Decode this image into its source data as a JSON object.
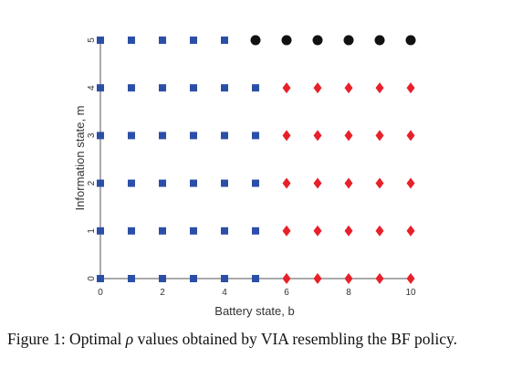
{
  "chart_data": {
    "type": "scatter",
    "xlabel": "Battery state, b",
    "ylabel": "Information state, m",
    "xlim": [
      0,
      10
    ],
    "ylim": [
      0,
      5
    ],
    "x_ticks": [
      0,
      2,
      4,
      6,
      8,
      10
    ],
    "y_ticks": [
      0,
      1,
      2,
      3,
      4,
      5
    ],
    "grid": false,
    "series": [
      {
        "marker": "square",
        "color": "#2b4fa8",
        "points": [
          [
            0,
            0
          ],
          [
            1,
            0
          ],
          [
            2,
            0
          ],
          [
            3,
            0
          ],
          [
            4,
            0
          ],
          [
            5,
            0
          ],
          [
            0,
            1
          ],
          [
            1,
            1
          ],
          [
            2,
            1
          ],
          [
            3,
            1
          ],
          [
            4,
            1
          ],
          [
            5,
            1
          ],
          [
            0,
            2
          ],
          [
            1,
            2
          ],
          [
            2,
            2
          ],
          [
            3,
            2
          ],
          [
            4,
            2
          ],
          [
            5,
            2
          ],
          [
            0,
            3
          ],
          [
            1,
            3
          ],
          [
            2,
            3
          ],
          [
            3,
            3
          ],
          [
            4,
            3
          ],
          [
            5,
            3
          ],
          [
            0,
            4
          ],
          [
            1,
            4
          ],
          [
            2,
            4
          ],
          [
            3,
            4
          ],
          [
            4,
            4
          ],
          [
            5,
            4
          ],
          [
            0,
            5
          ],
          [
            1,
            5
          ],
          [
            2,
            5
          ],
          [
            3,
            5
          ],
          [
            4,
            5
          ]
        ]
      },
      {
        "marker": "diamond",
        "color": "#e8202a",
        "points": [
          [
            6,
            0
          ],
          [
            7,
            0
          ],
          [
            8,
            0
          ],
          [
            9,
            0
          ],
          [
            10,
            0
          ],
          [
            6,
            1
          ],
          [
            7,
            1
          ],
          [
            8,
            1
          ],
          [
            9,
            1
          ],
          [
            10,
            1
          ],
          [
            6,
            2
          ],
          [
            7,
            2
          ],
          [
            8,
            2
          ],
          [
            9,
            2
          ],
          [
            10,
            2
          ],
          [
            6,
            3
          ],
          [
            7,
            3
          ],
          [
            8,
            3
          ],
          [
            9,
            3
          ],
          [
            10,
            3
          ],
          [
            6,
            4
          ],
          [
            7,
            4
          ],
          [
            8,
            4
          ],
          [
            9,
            4
          ],
          [
            10,
            4
          ]
        ]
      },
      {
        "marker": "circle",
        "color": "#111111",
        "points": [
          [
            5,
            5
          ],
          [
            6,
            5
          ],
          [
            7,
            5
          ],
          [
            8,
            5
          ],
          [
            9,
            5
          ],
          [
            10,
            5
          ]
        ]
      }
    ]
  },
  "caption": {
    "prefix": "Figure 1: Optimal ",
    "symbol": "ρ",
    "suffix": " values obtained by VIA resembling the BF policy."
  }
}
